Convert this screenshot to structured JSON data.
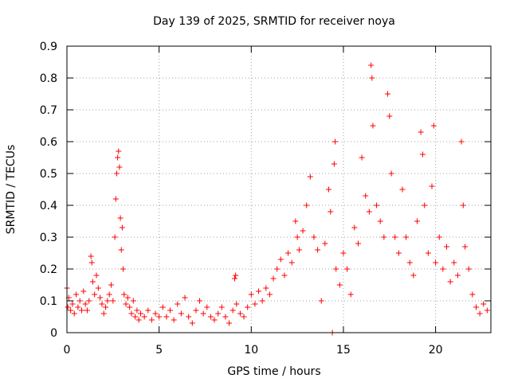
{
  "chart_data": {
    "type": "scatter",
    "title": "Day 139 of 2025, SRMTID for receiver noya",
    "xlabel": "GPS time / hours",
    "ylabel": "SRMTID / TECUs",
    "xlim": [
      0,
      23
    ],
    "ylim": [
      0,
      0.9
    ],
    "xticks": [
      0,
      5,
      10,
      15,
      20
    ],
    "yticks": [
      0,
      0.1,
      0.2,
      0.3,
      0.4,
      0.5,
      0.6,
      0.7,
      0.8,
      0.9
    ],
    "grid": true,
    "marker": "+",
    "color": "#ff0000",
    "series": [
      {
        "name": "SRMTID",
        "points": [
          [
            0.0,
            0.14
          ],
          [
            0.05,
            0.08
          ],
          [
            0.1,
            0.11
          ],
          [
            0.2,
            0.07
          ],
          [
            0.3,
            0.09
          ],
          [
            0.4,
            0.06
          ],
          [
            0.5,
            0.12
          ],
          [
            0.6,
            0.08
          ],
          [
            0.7,
            0.1
          ],
          [
            0.8,
            0.07
          ],
          [
            0.9,
            0.13
          ],
          [
            1.0,
            0.09
          ],
          [
            1.1,
            0.07
          ],
          [
            1.2,
            0.1
          ],
          [
            1.3,
            0.24
          ],
          [
            1.35,
            0.22
          ],
          [
            1.4,
            0.16
          ],
          [
            1.5,
            0.12
          ],
          [
            1.6,
            0.18
          ],
          [
            1.7,
            0.14
          ],
          [
            1.8,
            0.11
          ],
          [
            1.9,
            0.09
          ],
          [
            2.0,
            0.06
          ],
          [
            2.1,
            0.08
          ],
          [
            2.2,
            0.1
          ],
          [
            2.3,
            0.12
          ],
          [
            2.4,
            0.15
          ],
          [
            2.5,
            0.1
          ],
          [
            2.6,
            0.3
          ],
          [
            2.65,
            0.42
          ],
          [
            2.7,
            0.5
          ],
          [
            2.75,
            0.55
          ],
          [
            2.8,
            0.57
          ],
          [
            2.85,
            0.52
          ],
          [
            2.9,
            0.36
          ],
          [
            2.95,
            0.26
          ],
          [
            3.0,
            0.33
          ],
          [
            3.05,
            0.2
          ],
          [
            3.1,
            0.12
          ],
          [
            3.2,
            0.09
          ],
          [
            3.3,
            0.11
          ],
          [
            3.4,
            0.08
          ],
          [
            3.5,
            0.06
          ],
          [
            3.6,
            0.1
          ],
          [
            3.7,
            0.05
          ],
          [
            3.8,
            0.07
          ],
          [
            3.9,
            0.04
          ],
          [
            4.0,
            0.06
          ],
          [
            4.2,
            0.05
          ],
          [
            4.4,
            0.07
          ],
          [
            4.6,
            0.04
          ],
          [
            4.8,
            0.06
          ],
          [
            5.0,
            0.05
          ],
          [
            5.2,
            0.08
          ],
          [
            5.4,
            0.05
          ],
          [
            5.6,
            0.07
          ],
          [
            5.8,
            0.04
          ],
          [
            6.0,
            0.09
          ],
          [
            6.2,
            0.06
          ],
          [
            6.4,
            0.11
          ],
          [
            6.6,
            0.05
          ],
          [
            6.8,
            0.03
          ],
          [
            7.0,
            0.07
          ],
          [
            7.2,
            0.1
          ],
          [
            7.4,
            0.06
          ],
          [
            7.6,
            0.08
          ],
          [
            7.8,
            0.05
          ],
          [
            8.0,
            0.04
          ],
          [
            8.2,
            0.06
          ],
          [
            8.4,
            0.08
          ],
          [
            8.6,
            0.05
          ],
          [
            8.8,
            0.03
          ],
          [
            9.0,
            0.07
          ],
          [
            9.1,
            0.17
          ],
          [
            9.15,
            0.18
          ],
          [
            9.2,
            0.09
          ],
          [
            9.4,
            0.06
          ],
          [
            9.6,
            0.05
          ],
          [
            9.8,
            0.08
          ],
          [
            10.0,
            0.12
          ],
          [
            10.2,
            0.09
          ],
          [
            10.4,
            0.13
          ],
          [
            10.6,
            0.1
          ],
          [
            10.8,
            0.14
          ],
          [
            11.0,
            0.12
          ],
          [
            11.2,
            0.17
          ],
          [
            11.4,
            0.2
          ],
          [
            11.6,
            0.23
          ],
          [
            11.8,
            0.18
          ],
          [
            12.0,
            0.25
          ],
          [
            12.2,
            0.22
          ],
          [
            12.4,
            0.35
          ],
          [
            12.5,
            0.3
          ],
          [
            12.6,
            0.26
          ],
          [
            12.8,
            0.32
          ],
          [
            13.0,
            0.4
          ],
          [
            13.2,
            0.49
          ],
          [
            13.4,
            0.3
          ],
          [
            13.6,
            0.26
          ],
          [
            13.8,
            0.1
          ],
          [
            14.0,
            0.28
          ],
          [
            14.2,
            0.45
          ],
          [
            14.3,
            0.38
          ],
          [
            14.4,
            0.0
          ],
          [
            14.5,
            0.53
          ],
          [
            14.55,
            0.6
          ],
          [
            14.6,
            0.2
          ],
          [
            14.8,
            0.15
          ],
          [
            15.0,
            0.25
          ],
          [
            15.2,
            0.2
          ],
          [
            15.4,
            0.12
          ],
          [
            15.6,
            0.33
          ],
          [
            15.8,
            0.28
          ],
          [
            16.0,
            0.55
          ],
          [
            16.2,
            0.43
          ],
          [
            16.4,
            0.38
          ],
          [
            16.5,
            0.84
          ],
          [
            16.55,
            0.8
          ],
          [
            16.6,
            0.65
          ],
          [
            16.8,
            0.4
          ],
          [
            17.0,
            0.35
          ],
          [
            17.2,
            0.3
          ],
          [
            17.4,
            0.75
          ],
          [
            17.5,
            0.68
          ],
          [
            17.6,
            0.5
          ],
          [
            17.8,
            0.3
          ],
          [
            18.0,
            0.25
          ],
          [
            18.2,
            0.45
          ],
          [
            18.4,
            0.3
          ],
          [
            18.6,
            0.22
          ],
          [
            18.8,
            0.18
          ],
          [
            19.0,
            0.35
          ],
          [
            19.2,
            0.63
          ],
          [
            19.3,
            0.56
          ],
          [
            19.4,
            0.4
          ],
          [
            19.6,
            0.25
          ],
          [
            19.8,
            0.46
          ],
          [
            19.9,
            0.65
          ],
          [
            20.0,
            0.22
          ],
          [
            20.2,
            0.3
          ],
          [
            20.4,
            0.2
          ],
          [
            20.6,
            0.27
          ],
          [
            20.8,
            0.16
          ],
          [
            21.0,
            0.22
          ],
          [
            21.2,
            0.18
          ],
          [
            21.4,
            0.6
          ],
          [
            21.5,
            0.4
          ],
          [
            21.6,
            0.27
          ],
          [
            21.8,
            0.2
          ],
          [
            22.0,
            0.12
          ],
          [
            22.2,
            0.08
          ],
          [
            22.4,
            0.06
          ],
          [
            22.6,
            0.09
          ],
          [
            22.8,
            0.07
          ]
        ]
      }
    ]
  }
}
